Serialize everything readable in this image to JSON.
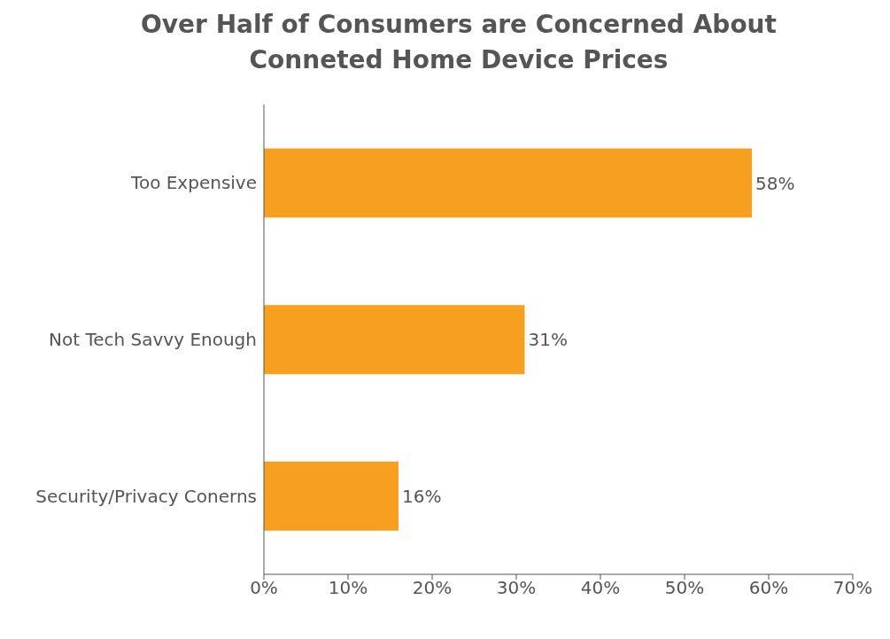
{
  "chart_data": {
    "type": "bar",
    "orientation": "horizontal",
    "title": "Over Half of Consumers are Concerned About Conneted Home Device Prices",
    "categories": [
      "Too Expensive",
      "Not Tech Savvy Enough",
      "Security/Privacy Conerns"
    ],
    "values": [
      58,
      31,
      16
    ],
    "value_labels": [
      "58%",
      "31%",
      "16%"
    ],
    "color": "#f7a01f",
    "xlim": [
      0,
      70
    ],
    "xticks": [
      {
        "value": 0,
        "label": "0%"
      },
      {
        "value": 10,
        "label": "10%"
      },
      {
        "value": 20,
        "label": "20%"
      },
      {
        "value": 30,
        "label": "30%"
      },
      {
        "value": 40,
        "label": "40%"
      },
      {
        "value": 50,
        "label": "50%"
      },
      {
        "value": 60,
        "label": "60%"
      },
      {
        "value": 70,
        "label": "70%"
      }
    ],
    "grid": false,
    "legend": false
  }
}
